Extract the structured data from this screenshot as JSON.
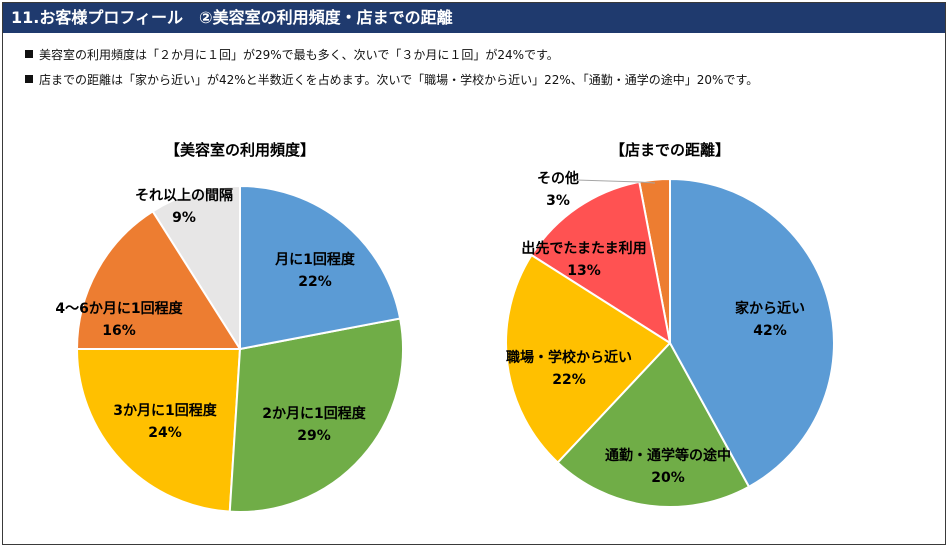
{
  "header": {
    "title": "11.お客様プロフィール　②美容室の利用頻度・店までの距離"
  },
  "bullets": [
    "美容室の利用頻度は「２か月に１回」が29%で最も多く、次いで「３か月に１回」が24%です。",
    "店までの距離は「家から近い」が42%と半数近くを占めます。次いで「職場・学校から近い」22%、「通勤・通学の途中」20%です。"
  ],
  "colors": {
    "title_bar": "#1f3a6e",
    "blue": "#5b9bd5",
    "green": "#70ad47",
    "yellow": "#ffc000",
    "orange": "#ed7d31",
    "gray": "#e7e6e6",
    "red": "#ff5252"
  },
  "chart_data": [
    {
      "type": "pie",
      "title": "【美容室の利用頻度】",
      "slices": [
        {
          "label": "月に1回程度",
          "value": 22,
          "display": "22%",
          "color": "#5b9bd5"
        },
        {
          "label": "2か月に1回程度",
          "value": 29,
          "display": "29%",
          "color": "#70ad47"
        },
        {
          "label": "3か月に1回程度",
          "value": 24,
          "display": "24%",
          "color": "#ffc000"
        },
        {
          "label": "4～6か月に1回程度",
          "value": 16,
          "display": "16%",
          "color": "#ed7d31"
        },
        {
          "label": "それ以上の間隔",
          "value": 9,
          "display": "9%",
          "color": "#e7e6e6"
        }
      ]
    },
    {
      "type": "pie",
      "title": "【店までの距離】",
      "slices": [
        {
          "label": "家から近い",
          "value": 42,
          "display": "42%",
          "color": "#5b9bd5"
        },
        {
          "label": "通勤・通学等の途中",
          "value": 20,
          "display": "20%",
          "color": "#70ad47"
        },
        {
          "label": "職場・学校から近い",
          "value": 22,
          "display": "22%",
          "color": "#ffc000"
        },
        {
          "label": "出先でたまたま利用",
          "value": 13,
          "display": "13%",
          "color": "#ff5252"
        },
        {
          "label": "その他",
          "value": 3,
          "display": "3%",
          "color": "#ed7d31"
        }
      ]
    }
  ]
}
